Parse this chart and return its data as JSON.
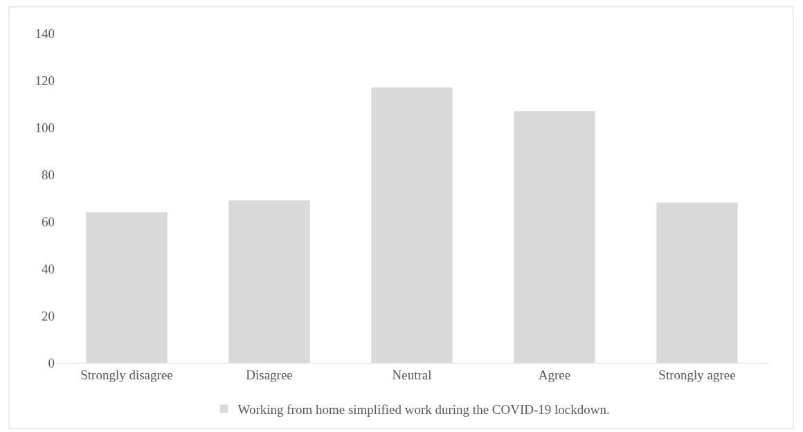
{
  "chart_data": {
    "type": "bar",
    "categories": [
      "Strongly disagree",
      "Disagree",
      "Neutral",
      "Agree",
      "Strongly agree"
    ],
    "series": [
      {
        "name": "Working from home simplified work during the COVID-19 lockdown.",
        "color": "#d9d9d9",
        "values": [
          64,
          69,
          117,
          107,
          68
        ]
      }
    ],
    "ylim": [
      0,
      140
    ],
    "yticks": [
      0,
      20,
      40,
      60,
      80,
      100,
      120,
      140
    ],
    "grid": false,
    "legend": "bottom"
  }
}
